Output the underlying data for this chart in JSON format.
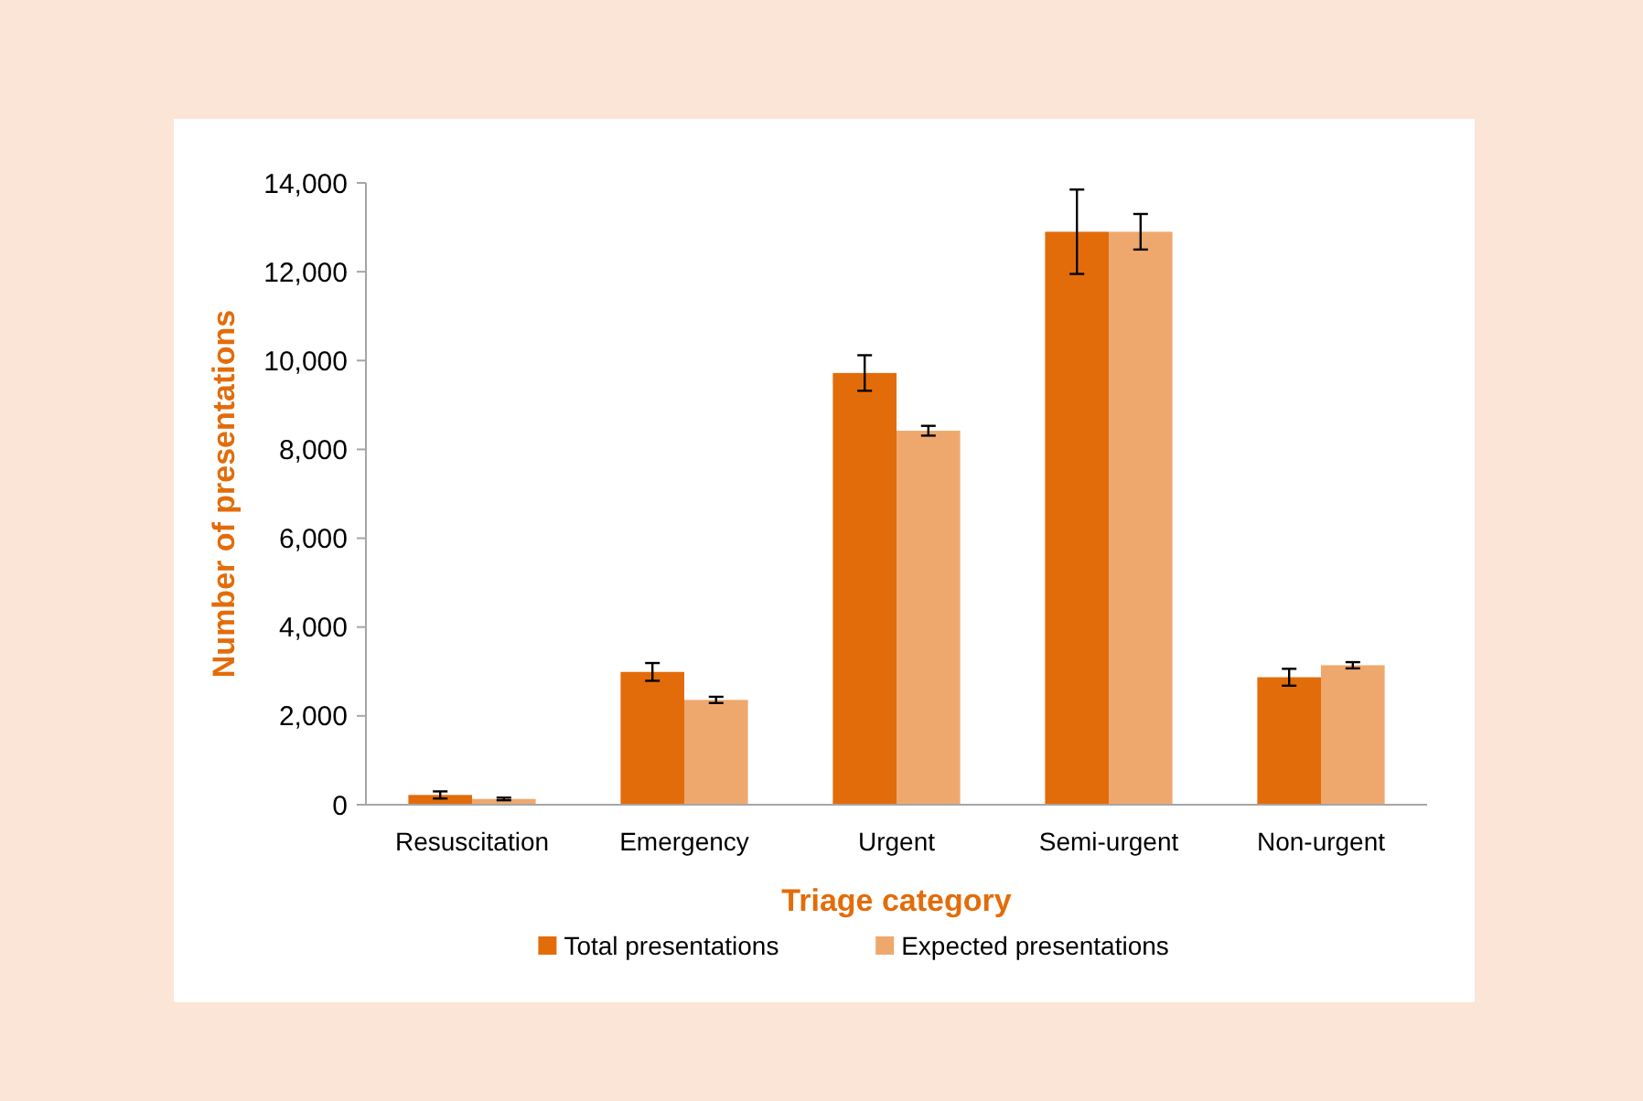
{
  "chart_data": {
    "type": "bar",
    "xlabel": "Triage category",
    "ylabel": "Number of presentations",
    "categories": [
      "Resuscitation",
      "Emergency",
      "Urgent",
      "Semi-urgent",
      "Non-urgent"
    ],
    "series": [
      {
        "name": "Total presentations",
        "color": "#e36c0a",
        "values": [
          220,
          2990,
          9720,
          12900,
          2870
        ],
        "errors": [
          80,
          200,
          400,
          950,
          190
        ]
      },
      {
        "name": "Expected presentations",
        "color": "#eea86e",
        "values": [
          130,
          2360,
          8420,
          12900,
          3140
        ],
        "errors": [
          30,
          70,
          110,
          400,
          70
        ]
      }
    ],
    "ylim": [
      0,
      14000
    ],
    "yticks": [
      {
        "value": 0,
        "label": "0"
      },
      {
        "value": 2000,
        "label": "2,000"
      },
      {
        "value": 4000,
        "label": "4,000"
      },
      {
        "value": 6000,
        "label": "6,000"
      },
      {
        "value": 8000,
        "label": "8,000"
      },
      {
        "value": 10000,
        "label": "10,000"
      },
      {
        "value": 12000,
        "label": "12,000"
      },
      {
        "value": 14000,
        "label": "14,000"
      }
    ],
    "grid": false,
    "legend": "bottom"
  }
}
